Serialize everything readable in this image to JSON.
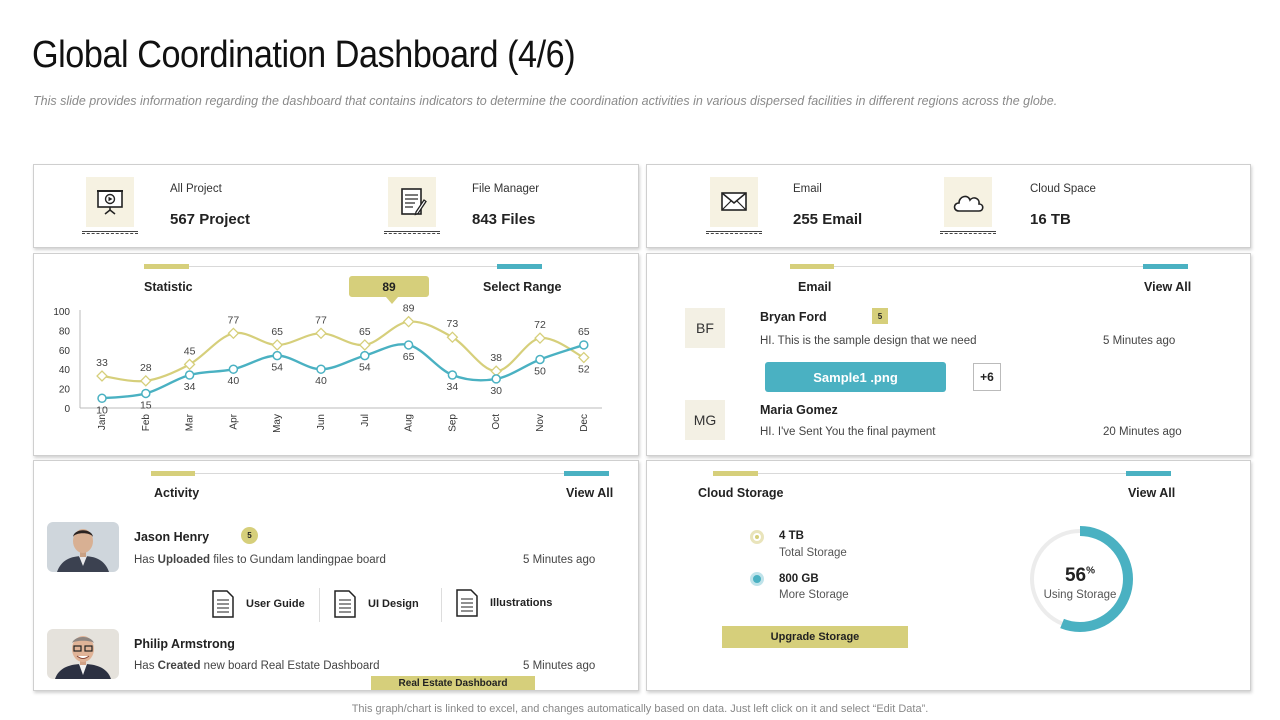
{
  "title": "Global Coordination Dashboard (4/6)",
  "subtitle": "This slide provides information regarding the dashboard that contains indicators to determine the coordination activities in various dispersed facilities in different regions across the globe.",
  "top_stats": [
    {
      "label": "All Project",
      "value": "567 Project",
      "icon": "presentation-icon"
    },
    {
      "label": "File Manager",
      "value": "843 Files",
      "icon": "document-edit-icon"
    },
    {
      "label": "Email",
      "value": "255 Email",
      "icon": "envelope-icon"
    },
    {
      "label": "Cloud Space",
      "value": "16 TB",
      "icon": "cloud-icon"
    }
  ],
  "statistic": {
    "title": "Statistic",
    "range_label": "Select Range",
    "callout_value": "89"
  },
  "chart_data": {
    "type": "line",
    "categories": [
      "Jan",
      "Feb",
      "Mar",
      "Apr",
      "May",
      "Jun",
      "Jul",
      "Aug",
      "Sep",
      "Oct",
      "Nov",
      "Dec"
    ],
    "series": [
      {
        "values": [
          33,
          28,
          45,
          77,
          65,
          77,
          65,
          89,
          73,
          38,
          72,
          52
        ]
      },
      {
        "values": [
          10,
          15,
          34,
          40,
          54,
          40,
          54,
          65,
          34,
          30,
          50,
          65
        ]
      }
    ],
    "ylim": [
      0,
      100
    ],
    "yticks": [
      0,
      20,
      40,
      60,
      80,
      100
    ],
    "colors": [
      "#d6cf7b",
      "#4ab1c2"
    ]
  },
  "email_panel": {
    "title": "Email",
    "view_all": "View All",
    "messages": [
      {
        "initials": "BF",
        "name": "Bryan Ford",
        "badge": "5",
        "text": "HI. This is the sample design that we need",
        "time": "5 Minutes ago"
      },
      {
        "initials": "MG",
        "name": "Maria Gomez",
        "text": "HI. I've Sent You the final payment",
        "time": "20 Minutes ago"
      }
    ],
    "attachment": "Sample1 .png",
    "more": "+6"
  },
  "activity": {
    "title": "Activity",
    "view_all": "View All",
    "items": [
      {
        "name": "Jason Henry",
        "badge": "5",
        "pre": "Has ",
        "verb": "Uploaded",
        "post": " files to Gundam landingpae board",
        "time": "5 Minutes ago"
      },
      {
        "name": "Philip Armstrong",
        "pre": "Has ",
        "verb": "Created",
        "post": " new board Real Estate Dashboard",
        "time": "5 Minutes ago"
      }
    ],
    "files": [
      "User Guide",
      "UI Design",
      "Illustrations"
    ],
    "board_tag": "Real Estate Dashboard"
  },
  "cloud_storage": {
    "title": "Cloud Storage",
    "view_all": "View All",
    "total_value": "4 TB",
    "total_label": "Total Storage",
    "more_value": "800 GB",
    "more_label": "More Storage",
    "upgrade": "Upgrade Storage",
    "percent": "56",
    "percent_sign": "%",
    "percent_label": "Using Storage",
    "percent_fraction": 0.56
  },
  "footer": "This graph/chart is linked to excel, and changes automatically  based on data. Just left click on it and select “Edit Data”."
}
